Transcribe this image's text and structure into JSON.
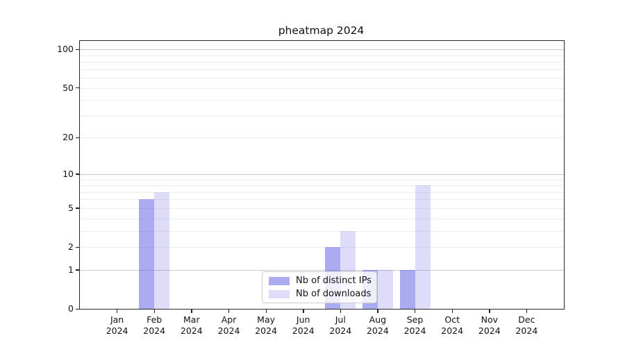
{
  "title": "pheatmap 2024",
  "chart_data": {
    "type": "bar",
    "title": "pheatmap 2024",
    "xlabel": "",
    "ylabel": "",
    "x_categories": [
      "Jan 2024",
      "Feb 2024",
      "Mar 2024",
      "Apr 2024",
      "May 2024",
      "Jun 2024",
      "Jul 2024",
      "Aug 2024",
      "Sep 2024",
      "Oct 2024",
      "Nov 2024",
      "Dec 2024"
    ],
    "series": [
      {
        "name": "Nb of distinct IPs",
        "color": "#6666e88c",
        "values": [
          0,
          6,
          0,
          0,
          0,
          0,
          2,
          1,
          1,
          0,
          0,
          0
        ]
      },
      {
        "name": "Nb of downloads",
        "color": "#6666e838",
        "values": [
          0,
          7,
          0,
          0,
          0,
          0,
          3,
          1,
          8,
          0,
          0,
          0
        ]
      }
    ],
    "yscale": "log10(1+x)",
    "ylim": [
      0,
      118
    ],
    "ytick_values": [
      0,
      1,
      2,
      5,
      10,
      20,
      50,
      100
    ],
    "grid": {
      "major": [
        1,
        10,
        100
      ],
      "minor": [
        2,
        3,
        4,
        5,
        6,
        7,
        8,
        9,
        20,
        30,
        40,
        50,
        60,
        70,
        80,
        90
      ]
    },
    "legend_position": "lower center",
    "colors": {
      "major_grid": "#c9c9c9",
      "minor_grid": "#ededed",
      "spine": "#2a2a2a",
      "text": "#111111"
    }
  }
}
